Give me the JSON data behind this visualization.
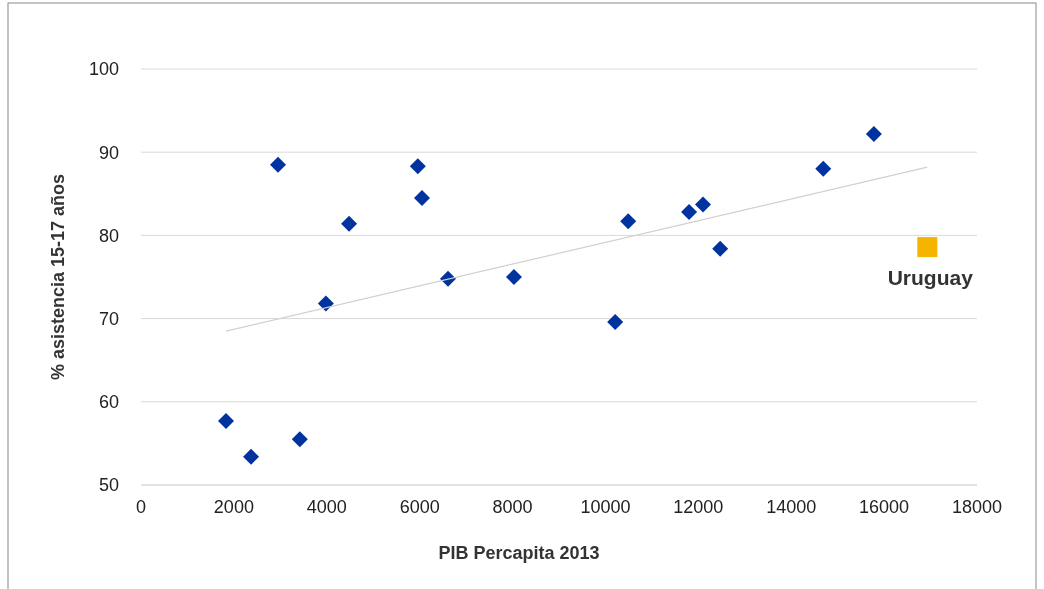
{
  "chart_data": {
    "type": "scatter",
    "xlabel": "PIB Percapita 2013",
    "ylabel": "% asistencia 15-17 años",
    "xlim": [
      0,
      18000
    ],
    "xticks": [
      0,
      2000,
      4000,
      6000,
      8000,
      10000,
      12000,
      14000,
      16000,
      18000
    ],
    "ylim": [
      50,
      100
    ],
    "yticks": [
      50,
      60,
      70,
      80,
      90,
      100
    ],
    "grid": "y",
    "series": [
      {
        "color": "#0033a0",
        "marker": "diamond",
        "x": [
          1830,
          2370,
          2950,
          3420,
          3980,
          4480,
          5960,
          6050,
          6610,
          8030,
          10210,
          10490,
          11800,
          12100,
          12470,
          14690,
          15780
        ],
        "values": [
          57.7,
          53.4,
          88.5,
          55.5,
          71.8,
          81.4,
          88.3,
          84.5,
          74.8,
          75.0,
          69.6,
          81.7,
          82.8,
          83.7,
          78.4,
          88.0,
          92.2
        ]
      },
      {
        "name": "Uruguay",
        "color": "#f5b400",
        "marker": "square",
        "x": [
          16930
        ],
        "values": [
          78.6
        ]
      },
      {
        "type": "line",
        "color": "#d0d0d0",
        "marker": "none",
        "line_style": "solid",
        "x": [
          1830,
          16930
        ],
        "values": [
          68.5,
          88.2
        ]
      }
    ]
  }
}
